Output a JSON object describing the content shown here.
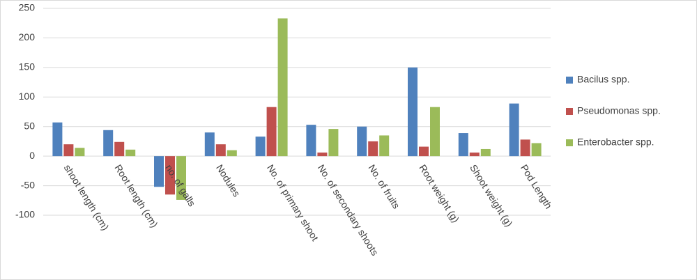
{
  "chart_data": {
    "type": "bar",
    "categories": [
      "shoot length (cm)",
      "Root length (cm)",
      "no. of galls",
      "Nodules",
      "No. of primary shoot",
      "No. of secondary shoots",
      "No. of fruits",
      "Root weight (g)",
      "Shoot weight (g)",
      "Pod Length"
    ],
    "series": [
      {
        "name": "Bacilus spp.",
        "color": "#4f81bd",
        "values": [
          57,
          44,
          -52,
          40,
          33,
          53,
          50,
          150,
          39,
          89
        ]
      },
      {
        "name": "Pseudomonas spp.",
        "color": "#c0504d",
        "values": [
          20,
          24,
          -65,
          20,
          83,
          6,
          25,
          16,
          6,
          28
        ]
      },
      {
        "name": "Enterobacter spp.",
        "color": "#9bbb59",
        "values": [
          14,
          11,
          -74,
          10,
          233,
          46,
          35,
          83,
          12,
          22
        ]
      }
    ],
    "ylim": [
      -100,
      250
    ],
    "yticks": [
      -100,
      -50,
      0,
      50,
      100,
      150,
      200,
      250
    ],
    "grid": true,
    "legend": "right"
  }
}
